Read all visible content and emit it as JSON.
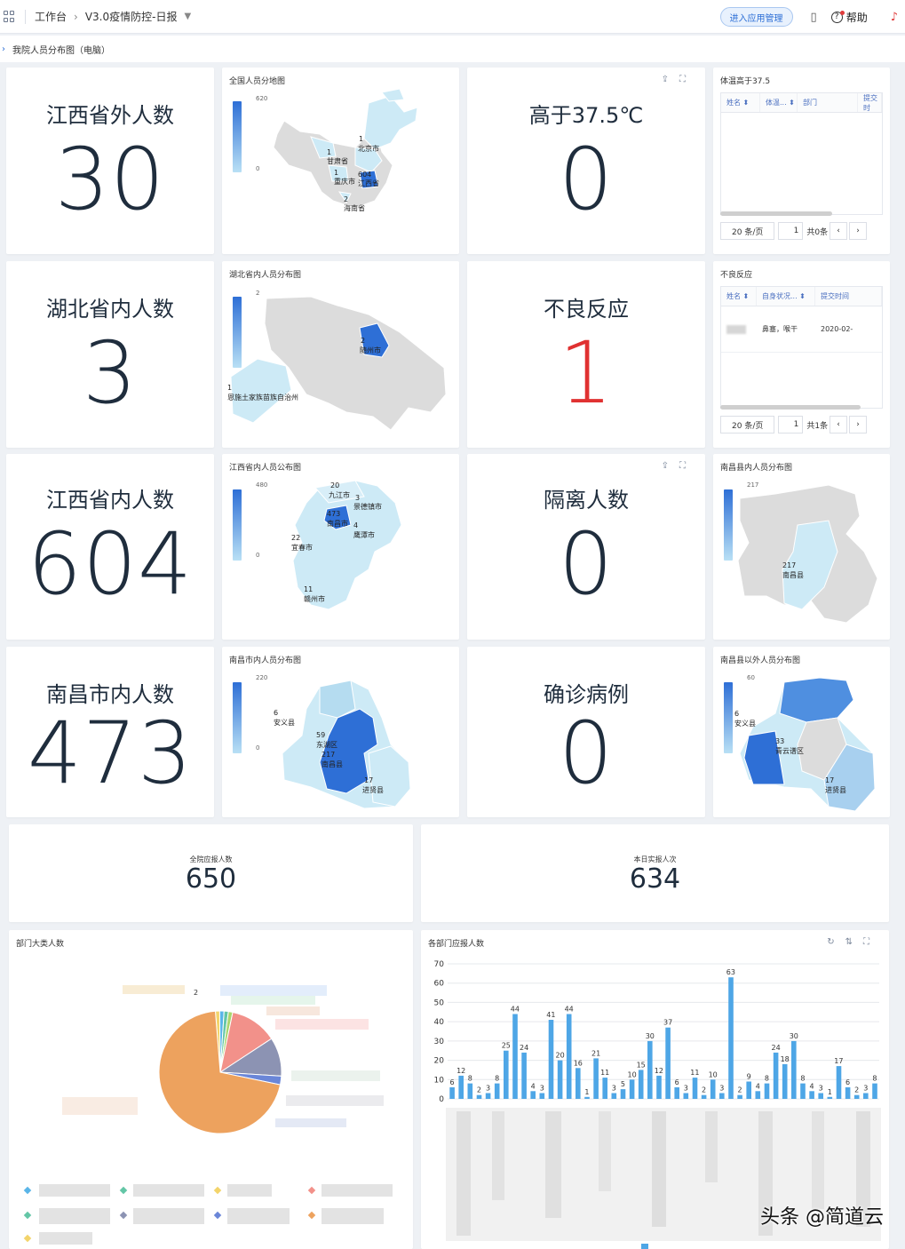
{
  "topbar": {
    "workbench": "工作台",
    "app_title": "V3.0疫情防控-日报",
    "app_manage_button": "进入应用管理",
    "help": "帮助"
  },
  "subbar": {
    "title": "我院人员分布图（电脑）"
  },
  "stats": {
    "outside_jiangxi": {
      "label": "江西省外人数",
      "value": "30"
    },
    "temp_high": {
      "label": "高于37.5℃",
      "value": "0"
    },
    "inside_hubei": {
      "label": "湖北省内人数",
      "value": "3"
    },
    "adverse": {
      "label": "不良反应",
      "value": "1"
    },
    "inside_jiangxi": {
      "label": "江西省内人数",
      "value": "604"
    },
    "isolation": {
      "label": "隔离人数",
      "value": "0"
    },
    "inside_nanchang_city": {
      "label": "南昌市内人数",
      "value": "473"
    },
    "confirmed": {
      "label": "确诊病例",
      "value": "0"
    }
  },
  "maps": {
    "national": {
      "title": "全国人员分地图",
      "max": "620",
      "min": "0",
      "labels": [
        {
          "v": "1",
          "n": "北京市"
        },
        {
          "v": "1",
          "n": "甘肃省"
        },
        {
          "v": "1",
          "n": "重庆市"
        },
        {
          "v": "604",
          "n": "江西省"
        },
        {
          "v": "2",
          "n": "海南省"
        }
      ]
    },
    "hubei": {
      "title": "湖北省内人员分布图",
      "max": "2",
      "min": "1",
      "labels": [
        {
          "v": "2",
          "n": "随州市"
        },
        {
          "v": "1",
          "n": "恩施土家族苗族自治州"
        }
      ]
    },
    "jiangxi": {
      "title": "江西省内人员公布图",
      "max": "480",
      "min": "0",
      "labels": [
        {
          "v": "20",
          "n": "九江市"
        },
        {
          "v": "3",
          "n": "景德镇市"
        },
        {
          "v": "473",
          "n": "南昌市"
        },
        {
          "v": "4",
          "n": "鹰潭市"
        },
        {
          "v": "22",
          "n": "宜春市"
        },
        {
          "v": "11",
          "n": "赣州市"
        }
      ]
    },
    "nanchang_county": {
      "title": "南昌县内人员分布图",
      "max": "217",
      "min": "217",
      "labels": [
        {
          "v": "217",
          "n": "南昌县"
        }
      ]
    },
    "nanchang_city": {
      "title": "南昌市内人员分布图",
      "max": "220",
      "min": "0",
      "labels": [
        {
          "v": "6",
          "n": "安义县"
        },
        {
          "v": "59",
          "n": "东湖区"
        },
        {
          "v": "217",
          "n": "南昌县"
        },
        {
          "v": "17",
          "n": "进贤县"
        }
      ]
    },
    "outside_county": {
      "title": "南昌县以外人员分布图",
      "max": "60",
      "min": "",
      "labels": [
        {
          "v": "6",
          "n": "安义县"
        },
        {
          "v": "33",
          "n": "青云谱区"
        },
        {
          "v": "17",
          "n": "进贤县"
        }
      ]
    }
  },
  "temp_table": {
    "title": "体温高于37.5",
    "columns": [
      "姓名",
      "体温...",
      "部门",
      "提交时"
    ],
    "page_size": "20 条/页",
    "page": "1",
    "total": "共0条"
  },
  "adverse_table": {
    "title": "不良反应",
    "columns": [
      "姓名",
      "自身状况...",
      "提交时间"
    ],
    "rows": [
      {
        "status": "鼻塞，喉干",
        "time": "2020-02-"
      }
    ],
    "page_size": "20 条/页",
    "page": "1",
    "total": "共1条"
  },
  "totals": {
    "should_report": {
      "label": "全院应报人数",
      "value": "650"
    },
    "reported_today": {
      "label": "本日实报人次",
      "value": "634"
    }
  },
  "pie_card": {
    "title": "部门大类人数",
    "pie_label": "2"
  },
  "bar_card": {
    "title": "各部门应报人数"
  },
  "chart_data": [
    {
      "type": "pie",
      "title": "部门大类人数",
      "slices": [
        {
          "value": 62,
          "color": "#eda25e"
        },
        {
          "value": 11,
          "color": "#f2918a"
        },
        {
          "value": 9,
          "color": "#8c93b3"
        },
        {
          "value": 2,
          "color": "#6a86d8"
        },
        {
          "value": 1,
          "color": "#5ab5e8"
        },
        {
          "value": 1,
          "color": "#63c6a6"
        },
        {
          "value": 1,
          "color": "#f3d46b"
        },
        {
          "value": 1,
          "color": "#a9d66f"
        }
      ]
    },
    {
      "type": "bar",
      "title": "各部门应报人数",
      "ylim": [
        0,
        70
      ],
      "yticks": [
        0,
        10,
        20,
        30,
        40,
        50,
        60,
        70
      ],
      "color": "#4ea6e6",
      "values": [
        6,
        12,
        8,
        2,
        3,
        8,
        25,
        44,
        24,
        4,
        3,
        41,
        20,
        44,
        16,
        1,
        21,
        11,
        3,
        5,
        10,
        15,
        30,
        12,
        37,
        6,
        3,
        11,
        2,
        10,
        3,
        63,
        2,
        9,
        4,
        8,
        24,
        18,
        30,
        8,
        4,
        3,
        1,
        17,
        6,
        2,
        3,
        8
      ]
    }
  ],
  "watermark": "头条 @简道云"
}
